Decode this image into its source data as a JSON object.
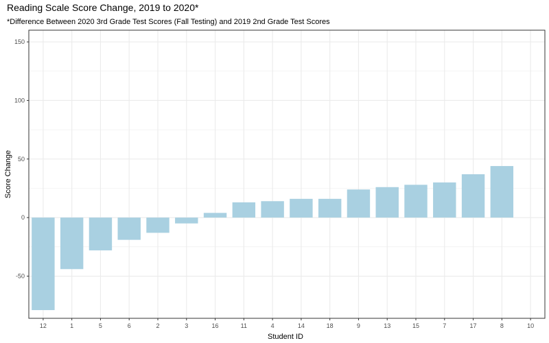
{
  "chart_data": {
    "type": "bar",
    "title": "Reading Scale Score Change, 2019 to 2020*",
    "subtitle": "*Difference Between 2020 3rd Grade Test Scores (Fall Testing) and 2019 2nd Grade Test Scores",
    "xlabel": "Student ID",
    "ylabel": "Score Change",
    "categories": [
      "12",
      "1",
      "5",
      "6",
      "2",
      "3",
      "16",
      "11",
      "4",
      "14",
      "18",
      "9",
      "13",
      "15",
      "7",
      "17",
      "8",
      "10"
    ],
    "values": [
      -79,
      -44,
      -28,
      -19,
      -13,
      -5,
      4,
      13,
      14,
      16,
      16,
      24,
      26,
      28,
      30,
      37,
      44,
      null
    ],
    "ylim": [
      -86,
      160
    ],
    "yticks": [
      -50,
      0,
      50,
      100,
      150
    ],
    "grid": true,
    "bar_color": "#a9d0e1",
    "grid_color": "#ebebeb",
    "panel_border_color": "#333333"
  }
}
